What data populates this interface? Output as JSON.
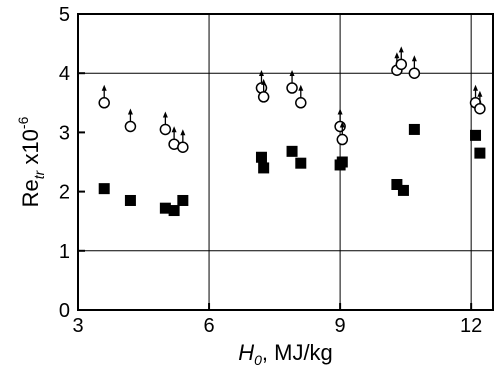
{
  "chart_data": {
    "type": "scatter",
    "title": "",
    "xlabel": "H0, MJ/kg",
    "ylabel": "Retr x10^-6",
    "xlabel_parts": {
      "main": "H",
      "sub": "0",
      "rest": ", MJ/kg"
    },
    "ylabel_parts": {
      "main": "Re",
      "sub": "tr",
      "mid": " x10",
      "sup": "-6"
    },
    "xlim": [
      3,
      12.5
    ],
    "ylim": [
      0,
      5
    ],
    "x_ticks": [
      3,
      6,
      9,
      12
    ],
    "y_ticks": [
      0,
      1,
      2,
      3,
      4,
      5
    ],
    "grid": false,
    "legend": "none",
    "reference_lines": {
      "vertical": [
        6,
        9,
        12
      ],
      "horizontal": [
        1,
        4
      ]
    },
    "series": [
      {
        "marker": "open-circle",
        "arrow_up": true,
        "color": "#000000",
        "points": [
          {
            "x": 3.6,
            "y": 3.5
          },
          {
            "x": 4.2,
            "y": 3.1
          },
          {
            "x": 5.0,
            "y": 3.05
          },
          {
            "x": 5.2,
            "y": 2.8
          },
          {
            "x": 5.4,
            "y": 2.75
          },
          {
            "x": 7.2,
            "y": 3.75
          },
          {
            "x": 7.25,
            "y": 3.6
          },
          {
            "x": 7.9,
            "y": 3.75
          },
          {
            "x": 8.1,
            "y": 3.5
          },
          {
            "x": 9.0,
            "y": 3.1
          },
          {
            "x": 9.05,
            "y": 2.88
          },
          {
            "x": 10.3,
            "y": 4.05
          },
          {
            "x": 10.4,
            "y": 4.15
          },
          {
            "x": 10.7,
            "y": 4.0
          },
          {
            "x": 12.1,
            "y": 3.5
          },
          {
            "x": 12.2,
            "y": 3.4
          }
        ]
      },
      {
        "marker": "filled-square",
        "arrow_up": false,
        "color": "#000000",
        "points": [
          {
            "x": 3.6,
            "y": 2.05
          },
          {
            "x": 4.2,
            "y": 1.85
          },
          {
            "x": 5.0,
            "y": 1.72
          },
          {
            "x": 5.2,
            "y": 1.68
          },
          {
            "x": 5.4,
            "y": 1.85
          },
          {
            "x": 7.2,
            "y": 2.58
          },
          {
            "x": 7.25,
            "y": 2.4
          },
          {
            "x": 7.9,
            "y": 2.68
          },
          {
            "x": 8.1,
            "y": 2.48
          },
          {
            "x": 9.0,
            "y": 2.45
          },
          {
            "x": 9.05,
            "y": 2.5
          },
          {
            "x": 10.3,
            "y": 2.12
          },
          {
            "x": 10.45,
            "y": 2.02
          },
          {
            "x": 10.7,
            "y": 3.05
          },
          {
            "x": 12.1,
            "y": 2.95
          },
          {
            "x": 12.2,
            "y": 2.65
          }
        ]
      }
    ]
  }
}
